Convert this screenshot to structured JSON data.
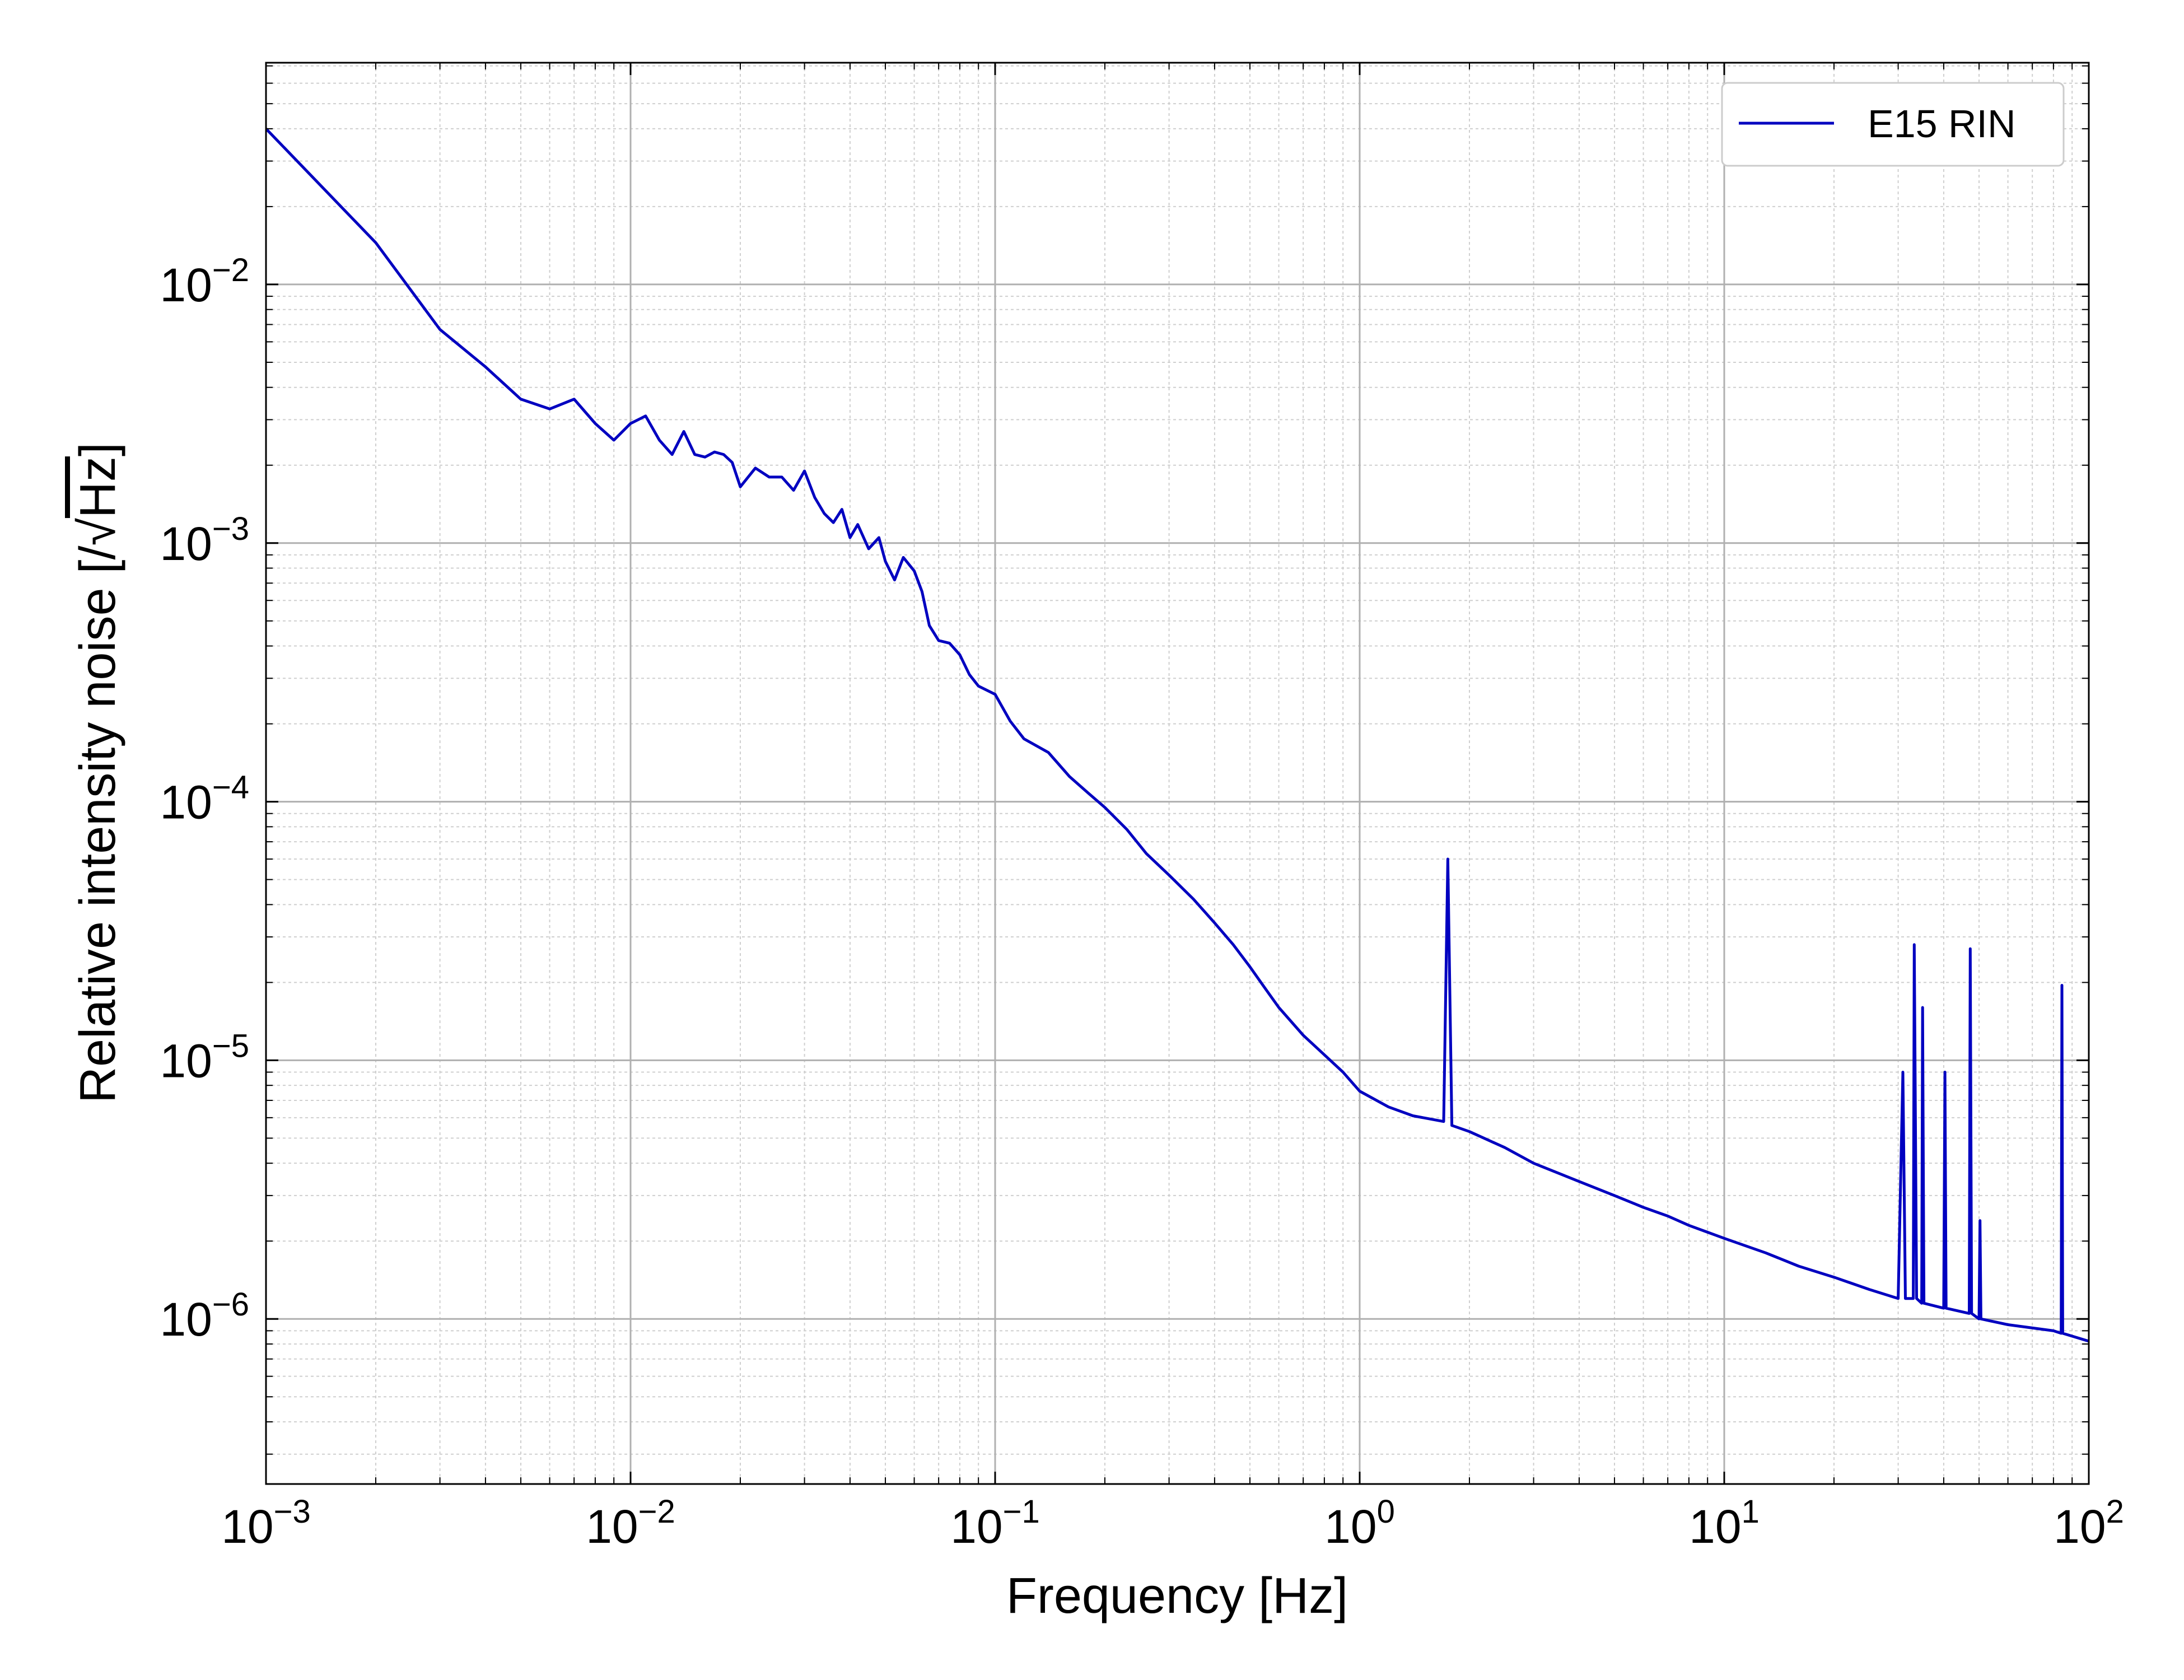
{
  "chart_data": {
    "type": "line",
    "xscale": "log",
    "yscale": "log",
    "xlim": [
      0.001,
      100
    ],
    "ylim": [
      2.3e-07,
      0.072
    ],
    "xlabel": "Frequency [Hz]",
    "ylabel_prefix": "Relative intensity noise [/",
    "ylabel_sqrt": "Hz",
    "ylabel_suffix": "]",
    "grid": {
      "major": true,
      "minor": true
    },
    "legend_position": "top-right",
    "x_ticks": [
      {
        "value": 0.001,
        "base": "10",
        "exp": "−3"
      },
      {
        "value": 0.01,
        "base": "10",
        "exp": "−2"
      },
      {
        "value": 0.1,
        "base": "10",
        "exp": "−1"
      },
      {
        "value": 1,
        "base": "10",
        "exp": "0"
      },
      {
        "value": 10,
        "base": "10",
        "exp": "1"
      },
      {
        "value": 100,
        "base": "10",
        "exp": "2"
      }
    ],
    "y_ticks": [
      {
        "value": 1e-06,
        "base": "10",
        "exp": "−6"
      },
      {
        "value": 1e-05,
        "base": "10",
        "exp": "−5"
      },
      {
        "value": 0.0001,
        "base": "10",
        "exp": "−4"
      },
      {
        "value": 0.001,
        "base": "10",
        "exp": "−3"
      },
      {
        "value": 0.01,
        "base": "10",
        "exp": "−2"
      }
    ],
    "series": [
      {
        "name": "E15 RIN",
        "color": "#0000c0",
        "points": [
          [
            0.001,
            0.04
          ],
          [
            0.002,
            0.0145
          ],
          [
            0.003,
            0.0067
          ],
          [
            0.004,
            0.0048
          ],
          [
            0.005,
            0.0036
          ],
          [
            0.006,
            0.0033
          ],
          [
            0.007,
            0.0036
          ],
          [
            0.008,
            0.0029
          ],
          [
            0.009,
            0.0025
          ],
          [
            0.01,
            0.0029
          ],
          [
            0.011,
            0.0031
          ],
          [
            0.012,
            0.0025
          ],
          [
            0.013,
            0.0022
          ],
          [
            0.014,
            0.0027
          ],
          [
            0.015,
            0.0022
          ],
          [
            0.016,
            0.00215
          ],
          [
            0.017,
            0.00225
          ],
          [
            0.018,
            0.0022
          ],
          [
            0.019,
            0.00205
          ],
          [
            0.02,
            0.00165
          ],
          [
            0.022,
            0.00195
          ],
          [
            0.024,
            0.0018
          ],
          [
            0.026,
            0.0018
          ],
          [
            0.028,
            0.0016
          ],
          [
            0.03,
            0.0019
          ],
          [
            0.032,
            0.0015
          ],
          [
            0.034,
            0.0013
          ],
          [
            0.036,
            0.0012
          ],
          [
            0.038,
            0.00135
          ],
          [
            0.04,
            0.00105
          ],
          [
            0.042,
            0.00118
          ],
          [
            0.045,
            0.00095
          ],
          [
            0.048,
            0.00105
          ],
          [
            0.05,
            0.00085
          ],
          [
            0.053,
            0.00072
          ],
          [
            0.056,
            0.00088
          ],
          [
            0.06,
            0.00078
          ],
          [
            0.063,
            0.00065
          ],
          [
            0.066,
            0.00048
          ],
          [
            0.07,
            0.00042
          ],
          [
            0.075,
            0.00041
          ],
          [
            0.08,
            0.00037
          ],
          [
            0.085,
            0.00031
          ],
          [
            0.09,
            0.00028
          ],
          [
            0.1,
            0.00026
          ],
          [
            0.11,
            0.000205
          ],
          [
            0.12,
            0.000175
          ],
          [
            0.14,
            0.000155
          ],
          [
            0.16,
            0.000125
          ],
          [
            0.18,
            0.000108
          ],
          [
            0.2,
            9.5e-05
          ],
          [
            0.23,
            7.8e-05
          ],
          [
            0.26,
            6.3e-05
          ],
          [
            0.3,
            5.2e-05
          ],
          [
            0.35,
            4.2e-05
          ],
          [
            0.4,
            3.4e-05
          ],
          [
            0.45,
            2.8e-05
          ],
          [
            0.5,
            2.3e-05
          ],
          [
            0.55,
            1.9e-05
          ],
          [
            0.6,
            1.6e-05
          ],
          [
            0.7,
            1.25e-05
          ],
          [
            0.8,
            1.05e-05
          ],
          [
            0.9,
            9e-06
          ],
          [
            1.0,
            7.6e-06
          ],
          [
            1.2,
            6.6e-06
          ],
          [
            1.4,
            6.1e-06
          ],
          [
            1.7,
            5.8e-06
          ],
          [
            1.745,
            6e-05
          ],
          [
            1.79,
            5.6e-06
          ],
          [
            2.0,
            5.3e-06
          ],
          [
            2.5,
            4.6e-06
          ],
          [
            3.0,
            4e-06
          ],
          [
            4.0,
            3.4e-06
          ],
          [
            5.0,
            3e-06
          ],
          [
            6.0,
            2.7e-06
          ],
          [
            7.0,
            2.5e-06
          ],
          [
            8.0,
            2.3e-06
          ],
          [
            10.0,
            2.05e-06
          ],
          [
            13.0,
            1.8e-06
          ],
          [
            16.0,
            1.6e-06
          ],
          [
            20.0,
            1.45e-06
          ],
          [
            25.0,
            1.3e-06
          ],
          [
            30.0,
            1.2e-06
          ],
          [
            30.9,
            9e-06
          ],
          [
            31.4,
            1.2e-06
          ],
          [
            33.0,
            1.2e-06
          ],
          [
            33.2,
            2.8e-05
          ],
          [
            33.7,
            1.2e-06
          ],
          [
            34.8,
            1.15e-06
          ],
          [
            35.0,
            1.6e-05
          ],
          [
            35.3,
            1.15e-06
          ],
          [
            40.0,
            1.1e-06
          ],
          [
            40.3,
            9e-06
          ],
          [
            40.6,
            1.1e-06
          ],
          [
            47.0,
            1.05e-06
          ],
          [
            47.3,
            2.7e-05
          ],
          [
            47.7,
            1.05e-06
          ],
          [
            50.0,
            1e-06
          ],
          [
            50.3,
            2.4e-06
          ],
          [
            50.6,
            1e-06
          ],
          [
            60.0,
            9.5e-07
          ],
          [
            80.0,
            9e-07
          ],
          [
            84.0,
            8.8e-07
          ],
          [
            84.4,
            1.95e-05
          ],
          [
            84.8,
            8.8e-07
          ],
          [
            100.0,
            8.2e-07
          ]
        ]
      }
    ]
  }
}
